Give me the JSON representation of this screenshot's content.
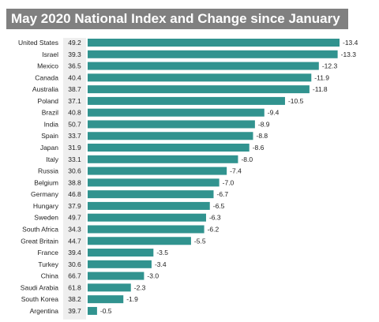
{
  "title": "May 2020 National Index and Change since January",
  "colors": {
    "bar": "#31938f",
    "title_bg": "#808080",
    "index_bg": "#eeeeee"
  },
  "chart_data": {
    "type": "bar",
    "orientation": "horizontal",
    "title": "May 2020 National Index and Change since January",
    "categories": [
      "United States",
      "Israel",
      "Mexico",
      "Canada",
      "Australia",
      "Poland",
      "Brazil",
      "India",
      "Spain",
      "Japan",
      "Italy",
      "Russia",
      "Belgium",
      "Germany",
      "Hungary",
      "Sweden",
      "South Africa",
      "Great Britain",
      "France",
      "Turkey",
      "China",
      "Saudi Arabia",
      "South Korea",
      "Argentina"
    ],
    "index": [
      49.2,
      39.3,
      36.5,
      40.4,
      38.7,
      37.1,
      40.8,
      50.7,
      33.7,
      31.9,
      33.1,
      30.6,
      38.8,
      46.8,
      37.9,
      49.7,
      34.3,
      44.7,
      39.4,
      30.6,
      66.7,
      61.8,
      38.2,
      39.7
    ],
    "series": [
      {
        "values": [
          -13.4,
          -13.3,
          -12.3,
          -11.9,
          -11.8,
          -10.5,
          -9.4,
          -8.9,
          -8.8,
          -8.6,
          -8.0,
          -7.4,
          -7.0,
          -6.7,
          -6.5,
          -6.3,
          -6.2,
          -5.5,
          -3.5,
          -3.4,
          -3.0,
          -2.3,
          -1.9,
          -0.5
        ]
      }
    ],
    "value_labels": [
      "-13.4",
      "-13.3",
      "-12.3",
      "-11.9",
      "-11.8",
      "-10.5",
      "-9.4",
      "-8.9",
      "-8.8",
      "-8.6",
      "-8.0",
      "-7.4",
      "-7.0",
      "-6.7",
      "-6.5",
      "-6.3",
      "-6.2",
      "-5.5",
      "-3.5",
      "-3.4",
      "-3.0",
      "-2.3",
      "-1.9",
      "-0.5"
    ],
    "xlabel": "",
    "ylabel": ""
  }
}
